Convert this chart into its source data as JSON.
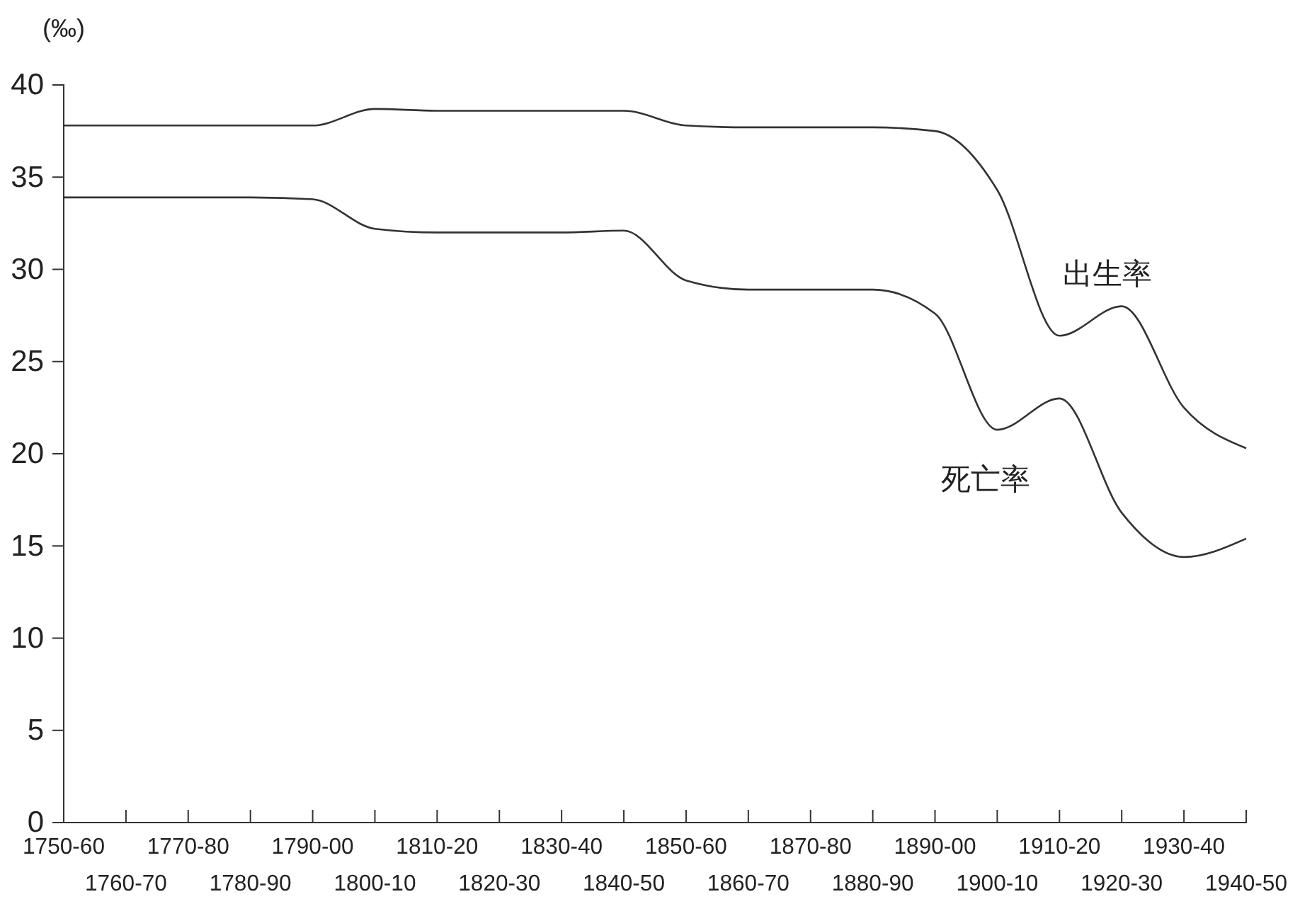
{
  "chart_data": {
    "type": "line",
    "ylabel": "(‰)",
    "ylim": [
      0,
      40
    ],
    "yticks": [
      0,
      5,
      10,
      15,
      20,
      25,
      30,
      35,
      40
    ],
    "categories": [
      "1750-60",
      "1760-70",
      "1770-80",
      "1780-90",
      "1790-00",
      "1800-10",
      "1810-20",
      "1820-30",
      "1830-40",
      "1840-50",
      "1850-60",
      "1860-70",
      "1870-80",
      "1880-90",
      "1890-00",
      "1900-10",
      "1910-20",
      "1920-30",
      "1930-40",
      "1940-50"
    ],
    "grid": false,
    "legend": false,
    "marker": "none",
    "line_style": "solid",
    "series": [
      {
        "name": "出生率",
        "color": "#333333",
        "values": [
          37.8,
          37.8,
          37.8,
          37.8,
          37.8,
          38.7,
          38.6,
          38.6,
          38.6,
          38.6,
          37.8,
          37.7,
          37.7,
          37.7,
          37.5,
          34.3,
          26.4,
          28.0,
          22.5,
          20.3
        ]
      },
      {
        "name": "死亡率",
        "color": "#333333",
        "values": [
          33.9,
          33.9,
          33.9,
          33.9,
          33.8,
          32.2,
          32.0,
          32.0,
          32.0,
          32.1,
          29.4,
          28.9,
          28.9,
          28.9,
          27.6,
          21.3,
          23.0,
          16.8,
          14.4,
          15.4
        ]
      }
    ]
  }
}
